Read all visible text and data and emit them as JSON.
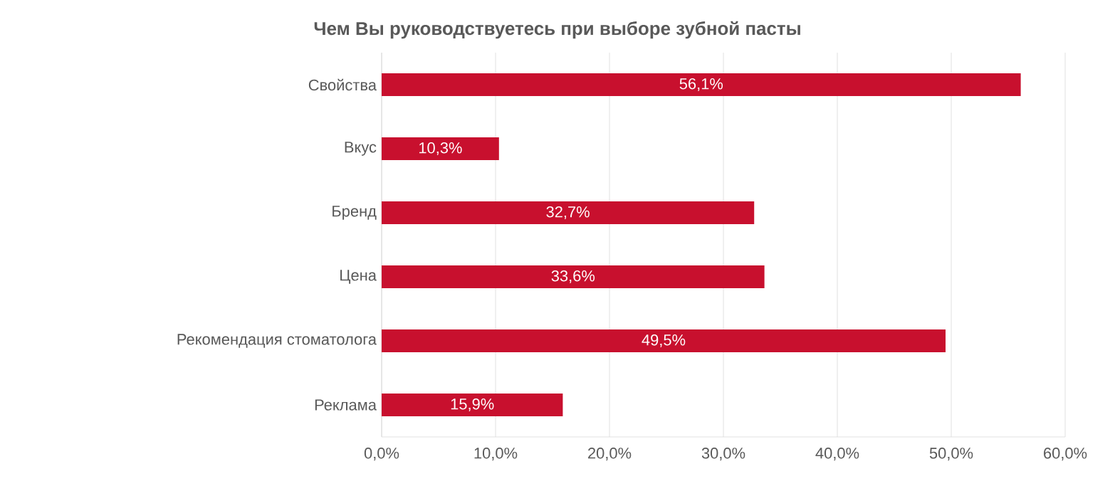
{
  "chart_data": {
    "type": "bar",
    "orientation": "horizontal",
    "title": "Чем Вы руководствуетесь при выборе зубной пасты",
    "categories": [
      "Свойства",
      "Вкус",
      "Бренд",
      "Цена",
      "Рекомендация стоматолога",
      "Реклама"
    ],
    "values": [
      56.1,
      10.3,
      32.7,
      33.6,
      49.5,
      15.9
    ],
    "value_labels": [
      "56,1%",
      "10,3%",
      "32,7%",
      "33,6%",
      "49,5%",
      "15,9%"
    ],
    "color": "#c8102e",
    "xlim": [
      0,
      60
    ],
    "xticks": [
      {
        "value": 0,
        "label": "0,0%"
      },
      {
        "value": 10,
        "label": "10,0%"
      },
      {
        "value": 20,
        "label": "20,0%"
      },
      {
        "value": 30,
        "label": "30,0%"
      },
      {
        "value": 40,
        "label": "40,0%"
      },
      {
        "value": 50,
        "label": "50,0%"
      },
      {
        "value": 60,
        "label": "60,0%"
      }
    ],
    "grid": "x"
  }
}
